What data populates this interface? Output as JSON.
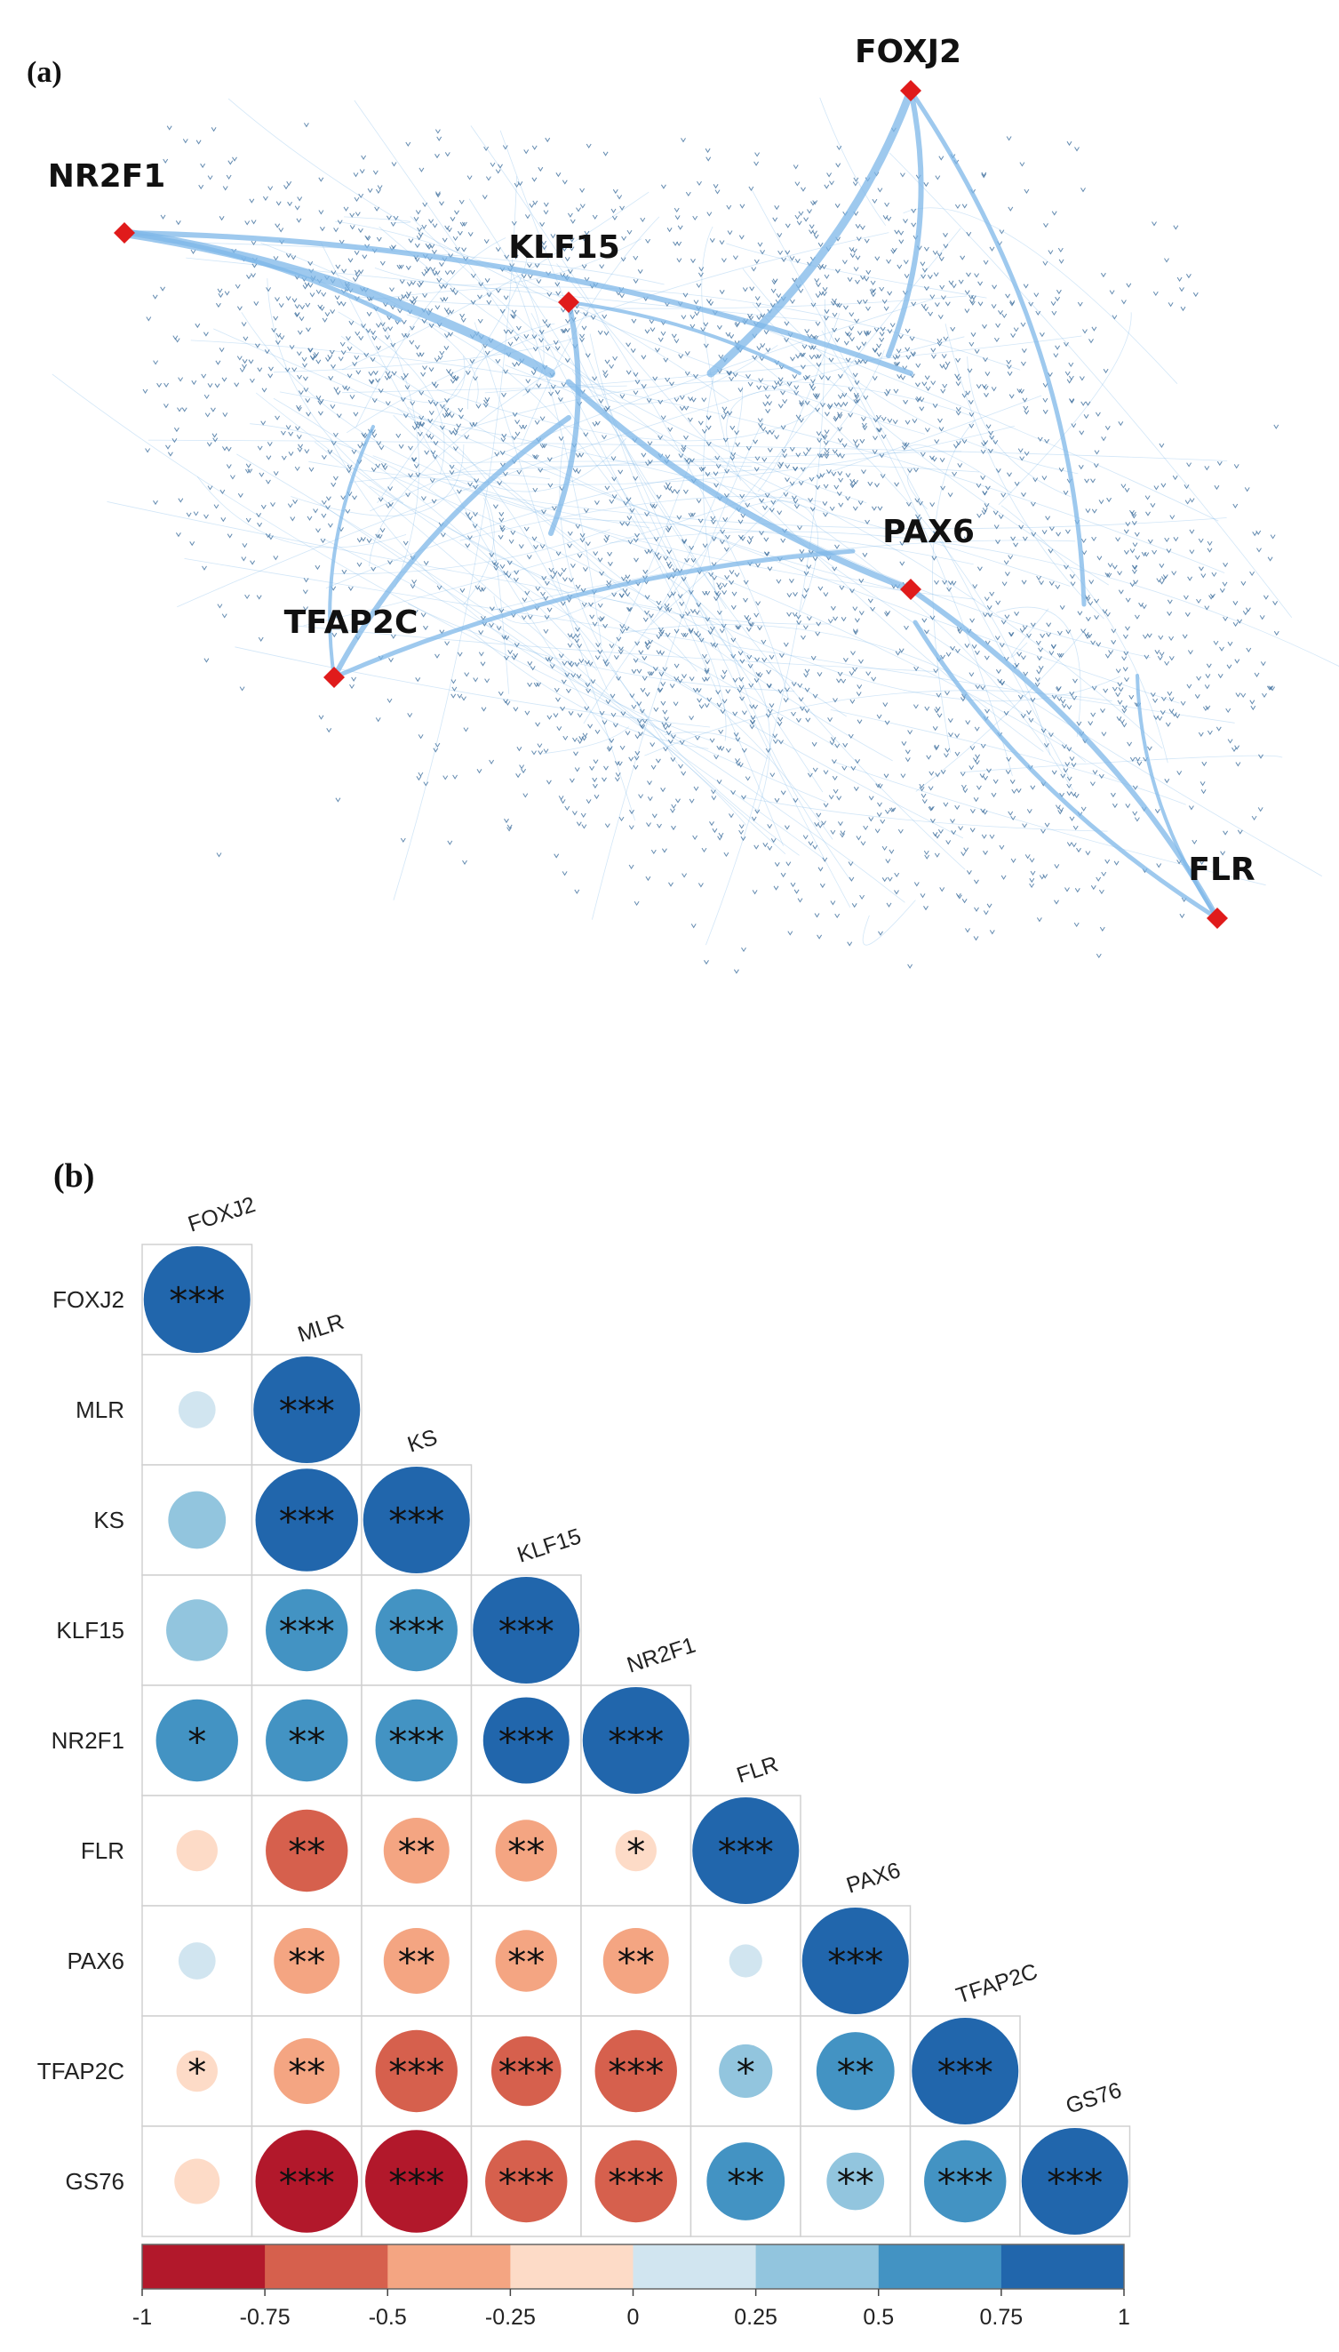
{
  "panel_a": {
    "label": "(a)",
    "hubs": [
      {
        "name": "FOXJ2"
      },
      {
        "name": "NR2F1"
      },
      {
        "name": "KLF15"
      },
      {
        "name": "PAX6"
      },
      {
        "name": "TFAP2C"
      },
      {
        "name": "FLR"
      }
    ],
    "colors": {
      "edge": "#7db7e8",
      "node": "#3f6f9e",
      "hub": "#e01b1b"
    }
  },
  "chart_data": {
    "type": "heatmap",
    "label": "(b)",
    "variables": [
      "FOXJ2",
      "MLR",
      "KS",
      "KLF15",
      "NR2F1",
      "FLR",
      "PAX6",
      "TFAP2C",
      "GS76"
    ],
    "matrix": [
      [
        1.0,
        0.15,
        0.4,
        0.45,
        0.7,
        -0.2,
        0.15,
        -0.2,
        -0.25
      ],
      [
        0.15,
        1.0,
        0.95,
        0.7,
        0.7,
        -0.7,
        -0.5,
        -0.5,
        -0.95
      ],
      [
        0.4,
        0.95,
        1.0,
        0.7,
        0.7,
        -0.5,
        -0.5,
        -0.7,
        -0.95
      ],
      [
        0.45,
        0.7,
        0.7,
        1.0,
        0.75,
        -0.45,
        -0.45,
        -0.55,
        -0.7
      ],
      [
        0.7,
        0.7,
        0.7,
        0.75,
        1.0,
        -0.2,
        -0.5,
        -0.7,
        -0.7
      ],
      [
        -0.2,
        -0.7,
        -0.5,
        -0.45,
        -0.2,
        1.0,
        0.1,
        0.35,
        0.65
      ],
      [
        0.15,
        -0.5,
        -0.5,
        -0.45,
        -0.5,
        0.1,
        1.0,
        0.65,
        0.4
      ],
      [
        -0.2,
        -0.5,
        -0.7,
        -0.55,
        -0.7,
        0.35,
        0.65,
        1.0,
        0.7
      ],
      [
        -0.25,
        -0.95,
        -0.95,
        -0.7,
        -0.7,
        0.65,
        0.4,
        0.7,
        1.0
      ]
    ],
    "significance": [
      [
        "***",
        "",
        "",
        "",
        "*",
        "",
        "",
        "*",
        ""
      ],
      [
        "",
        "***",
        "***",
        "***",
        "**",
        "**",
        "**",
        "**",
        "***"
      ],
      [
        "",
        "***",
        "***",
        "***",
        "***",
        "**",
        "**",
        "***",
        "***"
      ],
      [
        "",
        "***",
        "***",
        "***",
        "***",
        "**",
        "**",
        "***",
        "***"
      ],
      [
        "*",
        "**",
        "***",
        "***",
        "***",
        "*",
        "**",
        "***",
        "***"
      ],
      [
        "",
        "**",
        "**",
        "**",
        "*",
        "***",
        "",
        "*",
        "**"
      ],
      [
        "",
        "**",
        "**",
        "**",
        "**",
        "",
        "***",
        "**",
        "**"
      ],
      [
        "*",
        "**",
        "***",
        "***",
        "***",
        "*",
        "**",
        "***",
        "***"
      ],
      [
        "",
        "***",
        "***",
        "***",
        "***",
        "**",
        "**",
        "***",
        "***"
      ]
    ],
    "colorbar": {
      "ticks": [
        "-1",
        "-0.75",
        "-0.5",
        "-0.25",
        "0",
        "0.25",
        "0.5",
        "0.75",
        "1"
      ],
      "range": [
        -1,
        1
      ],
      "colors": [
        "#b2182b",
        "#d6604d",
        "#f4a582",
        "#fddbc7",
        "#d1e5f0",
        "#92c5de",
        "#4393c3",
        "#2166ac"
      ]
    }
  }
}
